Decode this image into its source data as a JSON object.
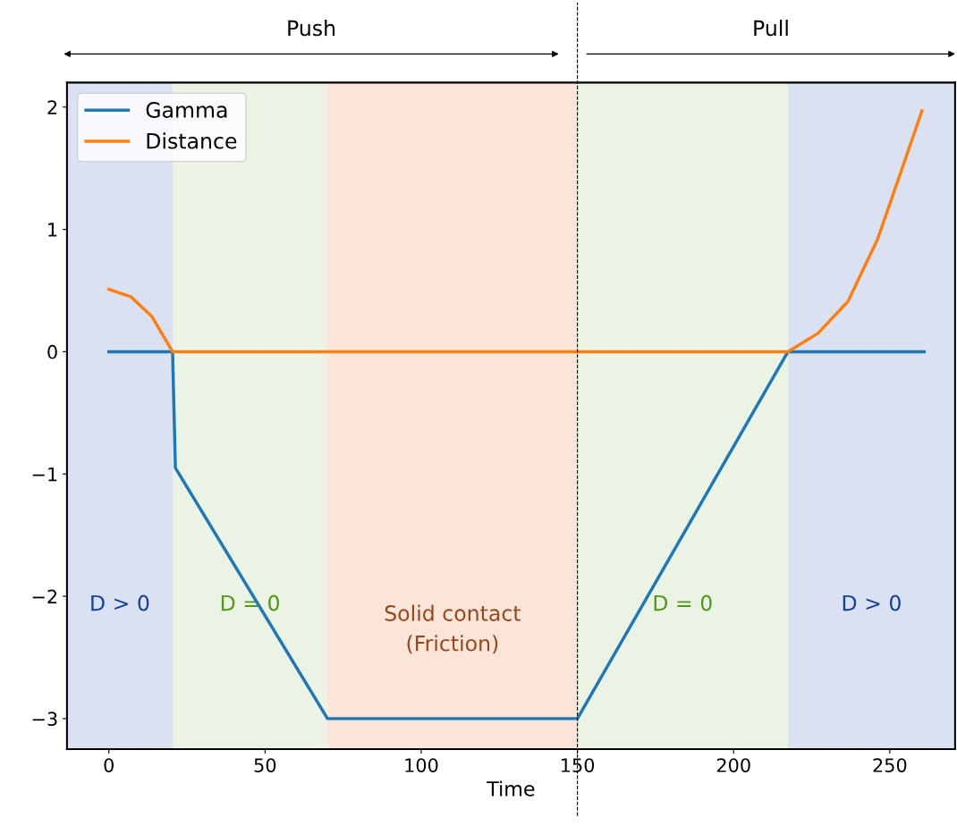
{
  "chart_data": {
    "type": "line",
    "xlabel": "Time",
    "xlim": [
      -13.4,
      270.9
    ],
    "ylim": [
      -3.25,
      2.2
    ],
    "xticks": [
      0,
      50,
      100,
      150,
      200,
      250
    ],
    "yticks": [
      {
        "value": -3,
        "label": "−3"
      },
      {
        "value": -2,
        "label": "−2"
      },
      {
        "value": -1,
        "label": "−1"
      },
      0,
      1,
      2
    ],
    "series": [
      {
        "name": "Gamma",
        "color": "#1f77b4",
        "x": [
          0,
          20.4,
          21.3,
          70,
          150,
          217.4,
          261
        ],
        "values": [
          0,
          0,
          -0.95,
          -3,
          -3,
          0,
          0
        ]
      },
      {
        "name": "Distance",
        "color": "#ff7f0e",
        "x": [
          0,
          7,
          13.7,
          20.4,
          217.4,
          227,
          236.6,
          246.1,
          253.7,
          260.3
        ],
        "values": [
          0.51,
          0.45,
          0.29,
          0,
          0,
          0.15,
          0.41,
          0.92,
          1.48,
          1.97
        ]
      }
    ],
    "bands": [
      {
        "axis": "x",
        "from": -13.4,
        "to": 20.4,
        "label": "D > 0",
        "color": "#d9e1f2"
      },
      {
        "axis": "x",
        "from": 20.4,
        "to": 70,
        "label": "D = 0",
        "color": "#ebf3e5"
      },
      {
        "axis": "x",
        "from": 70,
        "to": 150,
        "label": "Solid contact\n(Friction)",
        "color": "#fbe5d9"
      },
      {
        "axis": "x",
        "from": 150,
        "to": 217.4,
        "label": "D = 0",
        "color": "#ebf3e5"
      },
      {
        "axis": "x",
        "from": 217.4,
        "to": 270.9,
        "label": "D > 0",
        "color": "#d9e1f2"
      }
    ],
    "ref_lines": [
      {
        "axis": "x",
        "value": 150,
        "line_style": "dashed",
        "color": "#000000"
      }
    ],
    "annotations": [
      "Push",
      "Pull"
    ],
    "legend": "top left",
    "grid": false
  }
}
